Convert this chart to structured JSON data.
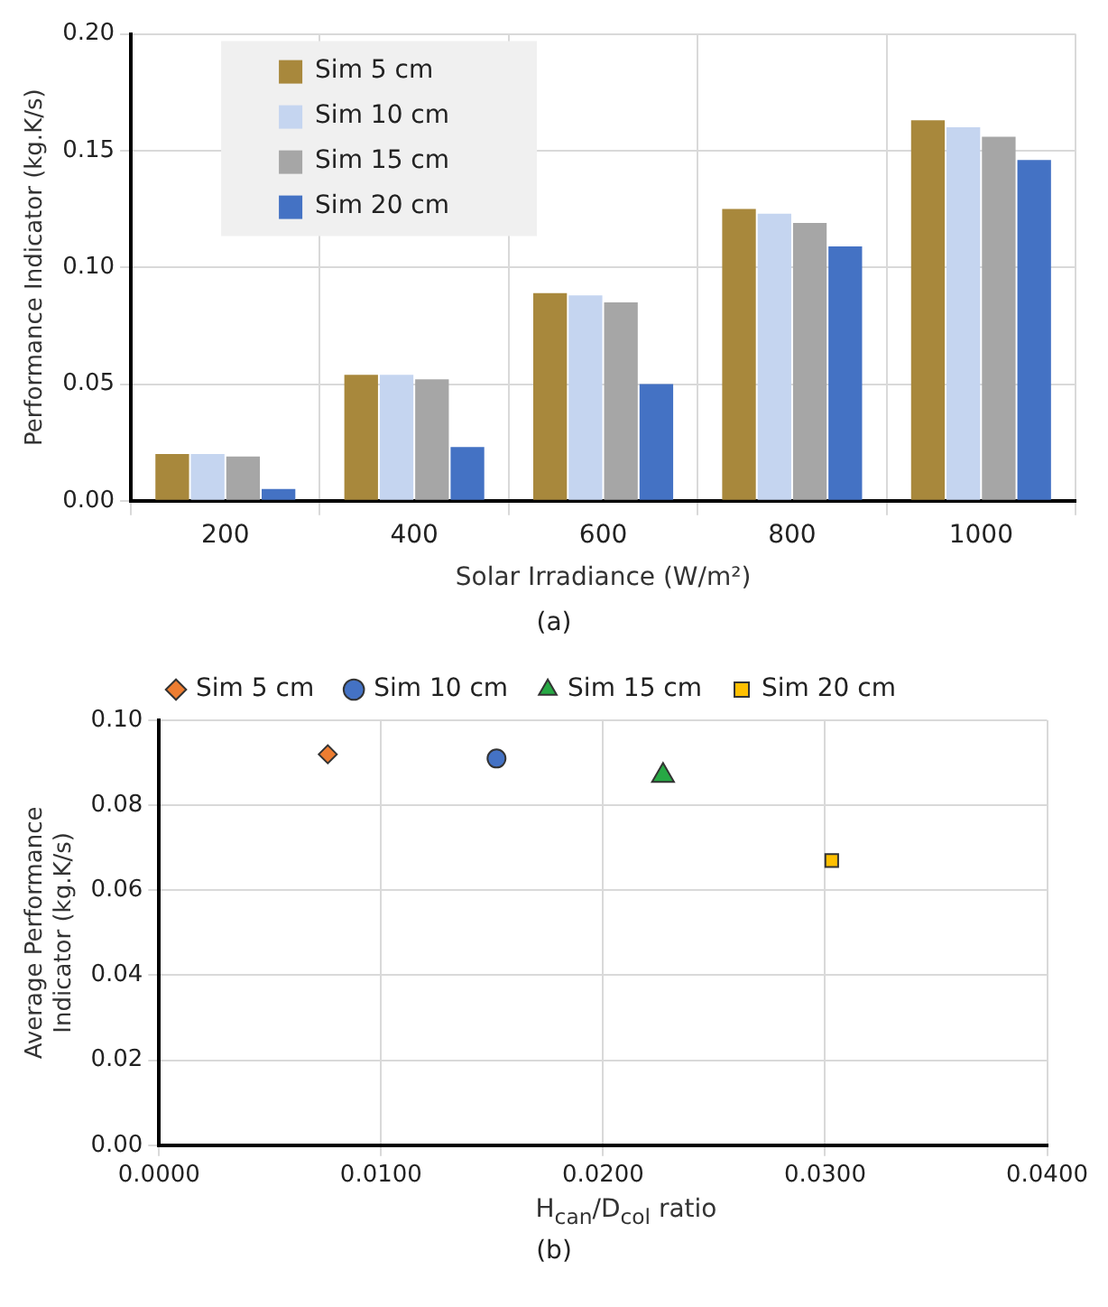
{
  "chart_data": [
    {
      "type": "bar",
      "xlabel": "Solar Irradiance (W/m²)",
      "ylabel": "Performance Indicator (kg.K/s)",
      "categories": [
        "200",
        "400",
        "600",
        "800",
        "1000"
      ],
      "series": [
        {
          "name": "Sim 5 cm",
          "color": "#a8883c",
          "values": [
            0.02,
            0.054,
            0.089,
            0.125,
            0.163
          ]
        },
        {
          "name": "Sim 10 cm",
          "color": "#c5d5f0",
          "values": [
            0.02,
            0.054,
            0.088,
            0.123,
            0.16
          ]
        },
        {
          "name": "Sim 15 cm",
          "color": "#a6a6a6",
          "values": [
            0.019,
            0.052,
            0.085,
            0.119,
            0.156
          ]
        },
        {
          "name": "Sim 20 cm",
          "color": "#4472c4",
          "values": [
            0.005,
            0.023,
            0.05,
            0.109,
            0.146
          ]
        }
      ],
      "ylim": [
        0,
        0.2
      ],
      "yticks": [
        {
          "value": 0,
          "label": "0.00"
        },
        {
          "value": 0.05,
          "label": "0.05"
        },
        {
          "value": 0.1,
          "label": "0.10"
        },
        {
          "value": 0.15,
          "label": "0.15"
        },
        {
          "value": 0.2,
          "label": "0.20"
        }
      ],
      "grid": true,
      "legend": "top left",
      "annotations": [
        "(a)"
      ]
    },
    {
      "type": "scatter",
      "xlabel": "H$_{can}$/D$_{col}$ ratio",
      "ylabel": "Average Performance Indicator (kg.K/s)",
      "series": [
        {
          "name": "Sim 5 cm",
          "color": "#ed7d31",
          "marker": "diamond",
          "x": [
            0.0076
          ],
          "values": [
            0.092
          ]
        },
        {
          "name": "Sim 10 cm",
          "color": "#4472c4",
          "marker": "circle",
          "x": [
            0.0152
          ],
          "values": [
            0.091
          ]
        },
        {
          "name": "Sim 15 cm",
          "color": "#27a844",
          "marker": "triangle",
          "x": [
            0.0227
          ],
          "values": [
            0.087
          ]
        },
        {
          "name": "Sim 20 cm",
          "color": "#ffc000",
          "marker": "square",
          "x": [
            0.0303
          ],
          "values": [
            0.067
          ]
        }
      ],
      "xlim": [
        0,
        0.04
      ],
      "xticks": [
        {
          "value": 0,
          "label": "0.0000"
        },
        {
          "value": 0.01,
          "label": "0.0100"
        },
        {
          "value": 0.02,
          "label": "0.0200"
        },
        {
          "value": 0.03,
          "label": "0.0300"
        },
        {
          "value": 0.04,
          "label": "0.0400"
        }
      ],
      "ylim": [
        0,
        0.1
      ],
      "yticks": [
        {
          "value": 0,
          "label": "0.00"
        },
        {
          "value": 0.02,
          "label": "0.02"
        },
        {
          "value": 0.04,
          "label": "0.04"
        },
        {
          "value": 0.06,
          "label": "0.06"
        },
        {
          "value": 0.08,
          "label": "0.08"
        },
        {
          "value": 0.1,
          "label": "0.10"
        }
      ],
      "grid": true,
      "legend": "top",
      "annotations": [
        "(b)"
      ]
    }
  ]
}
